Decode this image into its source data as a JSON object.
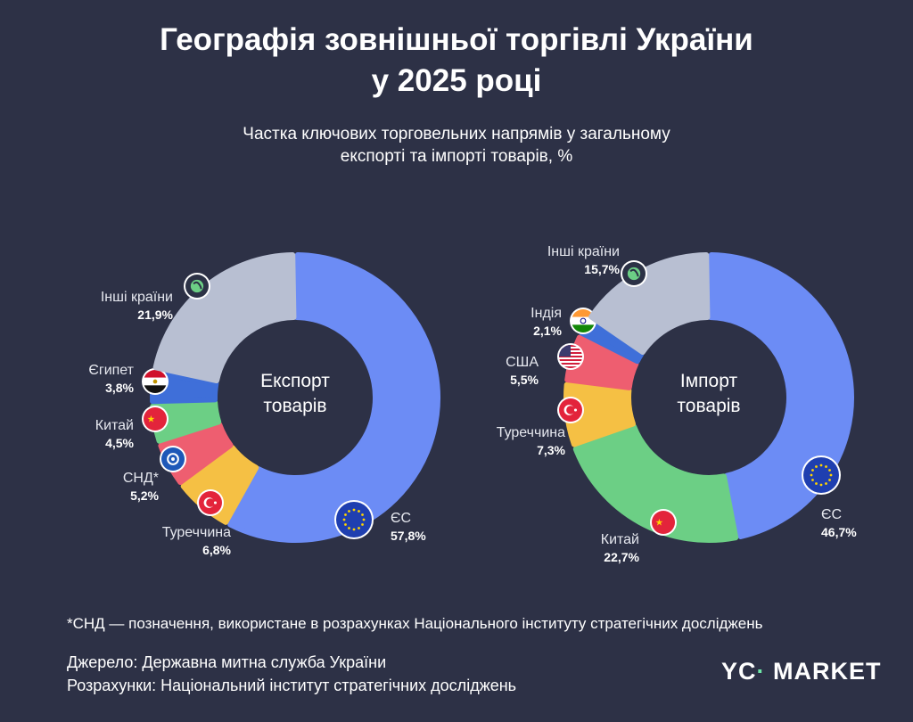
{
  "title_line1": "Географія зовнішньої торгівлі України",
  "title_line2": "у 2025 році",
  "subtitle_line1": "Частка ключових торговельних напрямів у загальному",
  "subtitle_line2": "експорті та імпорті товарів, %",
  "chart_data": [
    {
      "type": "pie",
      "title": "Експорт товарів",
      "center_line1": "Експорт",
      "center_line2": "товарів",
      "unit": "%",
      "slices": [
        {
          "name": "ЄС",
          "value": 57.8,
          "label": "57,8%",
          "color": "#6c8cf5",
          "icon": "eu-flag-icon"
        },
        {
          "name": "Туреччина",
          "value": 6.8,
          "label": "6,8%",
          "color": "#f5c044",
          "icon": "turkey-flag-icon"
        },
        {
          "name": "СНД*",
          "value": 5.2,
          "label": "5,2%",
          "color": "#ee5e70",
          "icon": "cis-emblem-icon"
        },
        {
          "name": "Китай",
          "value": 4.5,
          "label": "4,5%",
          "color": "#6ccf85",
          "icon": "china-flag-icon"
        },
        {
          "name": "Єгипет",
          "value": 3.8,
          "label": "3,8%",
          "color": "#3f6fd9",
          "icon": "egypt-flag-icon"
        },
        {
          "name": "Інші країни",
          "value": 21.9,
          "label": "21,9%",
          "color": "#b8bfd2",
          "icon": "globe-icon"
        }
      ]
    },
    {
      "type": "pie",
      "title": "Імпорт товарів",
      "center_line1": "Імпорт",
      "center_line2": "товарів",
      "unit": "%",
      "slices": [
        {
          "name": "ЄС",
          "value": 46.7,
          "label": "46,7%",
          "color": "#6c8cf5",
          "icon": "eu-flag-icon"
        },
        {
          "name": "Китай",
          "value": 22.7,
          "label": "22,7%",
          "color": "#6ccf85",
          "icon": "china-flag-icon"
        },
        {
          "name": "Туреччина",
          "value": 7.3,
          "label": "7,3%",
          "color": "#f5c044",
          "icon": "turkey-flag-icon"
        },
        {
          "name": "США",
          "value": 5.5,
          "label": "5,5%",
          "color": "#ee5e70",
          "icon": "usa-flag-icon"
        },
        {
          "name": "Індія",
          "value": 2.1,
          "label": "2,1%",
          "color": "#3f6fd9",
          "icon": "india-flag-icon"
        },
        {
          "name": "Інші країни",
          "value": 15.7,
          "label": "15,7%",
          "color": "#b8bfd2",
          "icon": "globe-icon"
        }
      ]
    }
  ],
  "footnote": "*СНД — позначення, використане в розрахунках Національного інституту стратегічних досліджень",
  "source": "Джерело: Державна митна служба України",
  "calculations": "Розрахунки: Національний інститут стратегічних досліджень",
  "logo": {
    "mark": "YC",
    "text": "MARKET",
    "accent": "#6ee7a8"
  }
}
